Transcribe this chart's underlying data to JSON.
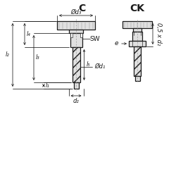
{
  "bg_color": "#ffffff",
  "line_color": "#1a1a1a",
  "title_C": "C",
  "title_CK": "CK",
  "label_d3": "Ød₃",
  "label_d1": "Ød₁",
  "label_d2": "d₂",
  "label_d2_CK": "0,5 x d₂",
  "label_l1": "l₁",
  "label_l2": "l₂",
  "label_l3": "l₃",
  "label_l4": "l₄",
  "label_l5": "l₅",
  "label_SW": "SW",
  "label_e": "e",
  "font_title": 10,
  "font_label": 6.5,
  "font_dim": 6.0
}
